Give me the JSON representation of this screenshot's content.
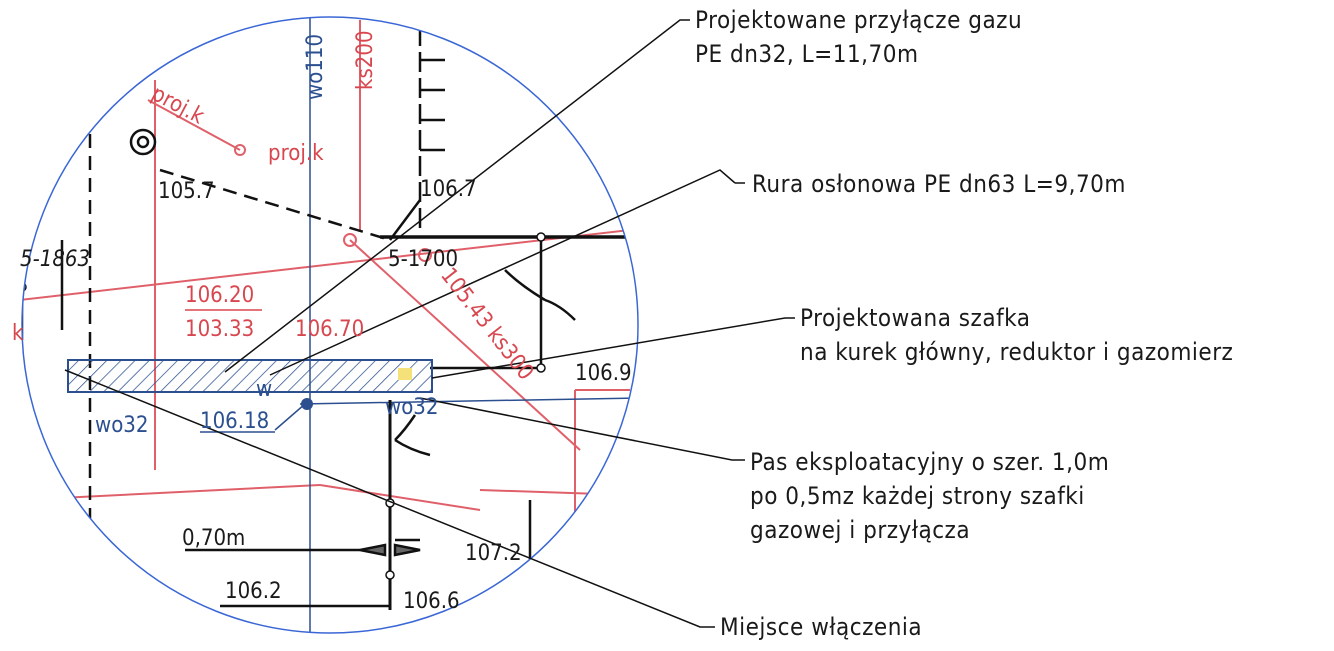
{
  "annotations": [
    {
      "lines": [
        "Projektowane przyłącze gazu",
        "PE dn32, L=11,70m"
      ]
    },
    {
      "lines": [
        "Rura osłonowa PE dn63 L=9,70m"
      ]
    },
    {
      "lines": [
        "Projektowana szafka",
        "na kurek główny, reduktor i gazomierz"
      ]
    },
    {
      "lines": [
        "Pas eksploatacyjny o szer. 1,0m",
        "po 0,5mz każdej strony szafki",
        "gazowej i przyłącza"
      ]
    },
    {
      "lines": [
        "Miejsce włączenia"
      ]
    }
  ],
  "labels": [
    "wo110",
    "ks200",
    "proj.k",
    "proj.k",
    "105.7",
    "106.7",
    "5-1863",
    "5-1700",
    "106.20",
    "103.33",
    "106.70",
    "105.43 ks300",
    "w",
    "wo32",
    "wo32",
    "106.18",
    "106.9",
    "0,70m",
    "107.2",
    "106.2",
    "106.6",
    "k"
  ]
}
